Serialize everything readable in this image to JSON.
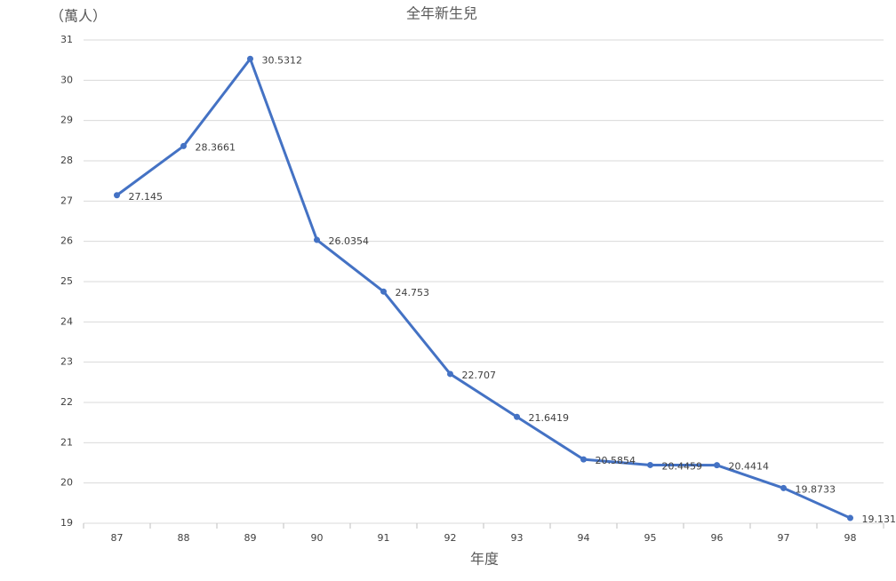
{
  "chart_data": {
    "type": "line",
    "title": "全年新生兒",
    "y_label": "（萬人）",
    "x_label": "年度",
    "categories": [
      "87",
      "88",
      "89",
      "90",
      "91",
      "92",
      "93",
      "94",
      "95",
      "96",
      "97",
      "98"
    ],
    "values": [
      27.145,
      28.3661,
      30.5312,
      26.0354,
      24.753,
      22.707,
      21.6419,
      20.5854,
      20.4459,
      20.4414,
      19.8733,
      19.131
    ],
    "color": "#4472c4",
    "ylim": [
      19,
      31
    ],
    "yticks": [
      19,
      20,
      21,
      22,
      23,
      24,
      25,
      26,
      27,
      28,
      29,
      30,
      31
    ],
    "grid": true
  }
}
